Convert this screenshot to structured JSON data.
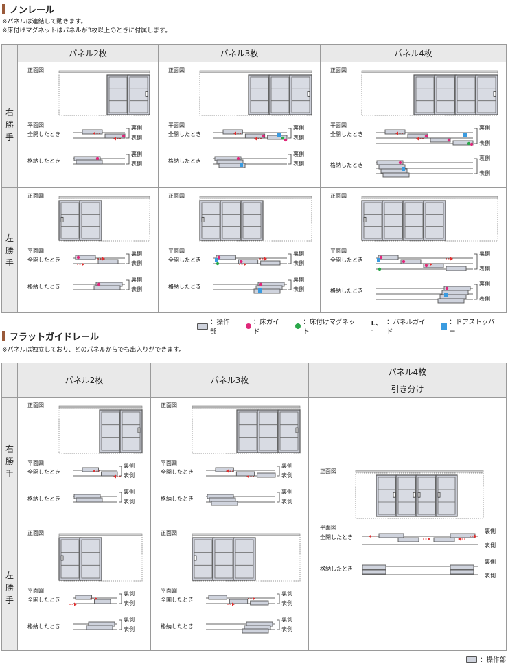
{
  "section1": {
    "title": "ノンレール",
    "notes": [
      "※パネルは連結して動きます。",
      "※床付けマグネットはパネルが3枚以上のときに付属します。"
    ],
    "columns": [
      "パネル2枚",
      "パネル3枚",
      "パネル4枚"
    ],
    "rows": [
      [
        "右",
        "勝",
        "手"
      ],
      [
        "左",
        "勝",
        "手"
      ]
    ]
  },
  "section2": {
    "title": "フラットガイドレール",
    "notes": [
      "※パネルは独立しており、どのパネルからでも出入りができます。"
    ],
    "columns": [
      "パネル2枚",
      "パネル3枚",
      "パネル4枚"
    ],
    "col4_sub": "引き分け",
    "rows": [
      [
        "右",
        "勝",
        "手"
      ],
      [
        "左",
        "勝",
        "手"
      ]
    ]
  },
  "labels": {
    "front": "正面図",
    "plan": "平面図",
    "open": "全開したとき",
    "stored": "格納したとき",
    "back": "裏側",
    "front_side": "表側"
  },
  "legend": {
    "operation": "：操作部",
    "floor_guide": "：床ガイド",
    "magnet": "：床付けマグネット",
    "panel_guide_glyph": "L 、┘",
    "panel_guide": "：パネルガイド",
    "door_stopper": "：ドアストッパー"
  },
  "legend2": {
    "operation": "：操作部"
  },
  "colors": {
    "accent": "#9a5a3a",
    "header_bg": "#e9e9e9",
    "floor_guide": "#e0287a",
    "magnet": "#2aa84a",
    "door_stopper": "#3a9be0",
    "arrow": "#e03030",
    "panel": "#cfd3dd"
  }
}
